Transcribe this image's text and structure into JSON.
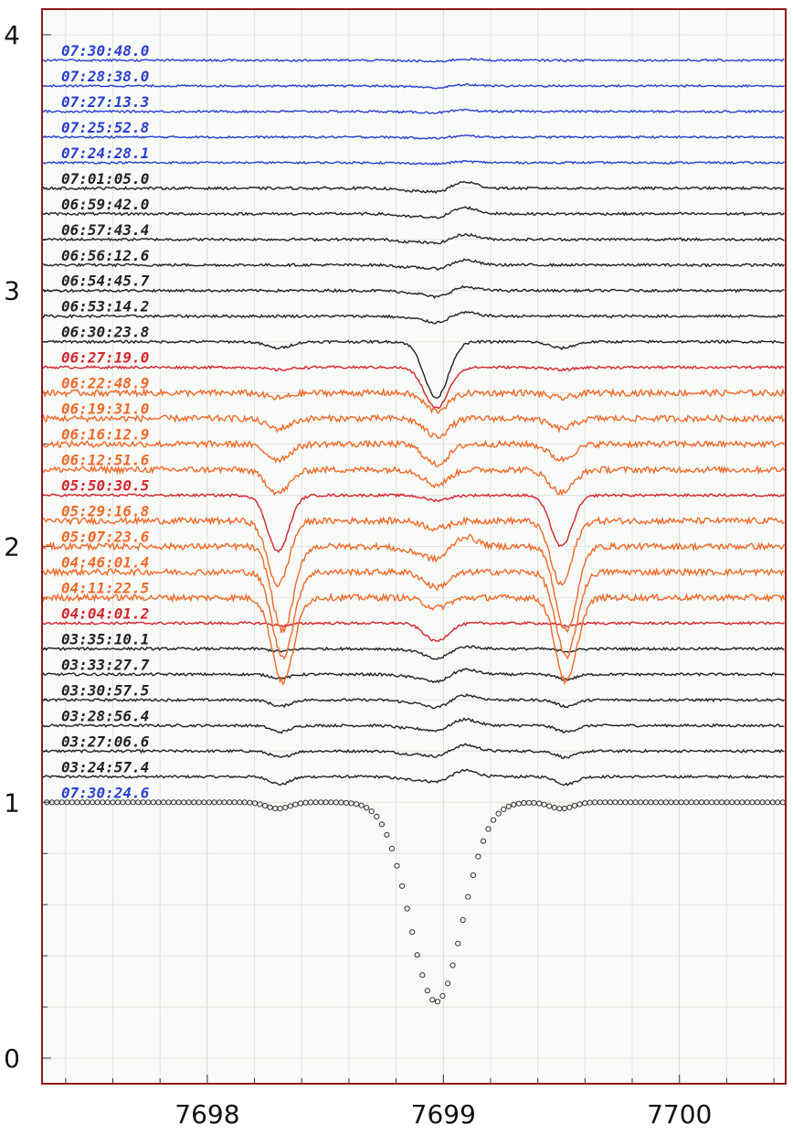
{
  "chart_data": {
    "type": "line",
    "title": "",
    "xlabel": "",
    "ylabel": "",
    "xlim": [
      7697.3,
      7700.45
    ],
    "ylim": [
      -0.1,
      4.1
    ],
    "grid": true,
    "x_ticks": [
      7698,
      7699,
      7700
    ],
    "y_ticks": [
      0,
      1,
      2,
      3,
      4
    ],
    "x_tick_labels": [
      "7698",
      "7699",
      "7700"
    ],
    "y_tick_labels": [
      "0",
      "1",
      "2",
      "3",
      "4"
    ],
    "colors": {
      "frame": "#8b1a1a",
      "plot_bg": "#f8faf7",
      "grid": "#e0e4dd",
      "blue": "#2a3fd0",
      "black": "#222222",
      "red": "#d4262e",
      "orange": "#f06a2a",
      "markers": "#333333"
    },
    "reference_series": {
      "label": "07:30:24.6",
      "label_color": "blue",
      "marker": "open-circle",
      "continuum": 1.0,
      "lines": [
        {
          "center": 7698.97,
          "depth": 0.78,
          "width": 0.11
        },
        {
          "center": 7698.3,
          "depth": 0.025,
          "width": 0.05
        },
        {
          "center": 7699.5,
          "depth": 0.025,
          "width": 0.05
        }
      ]
    },
    "series": [
      {
        "label": "03:24:57.4",
        "color": "black",
        "offset": 1.1,
        "lines": [
          {
            "center": 7698.31,
            "depth": 0.03,
            "width": 0.04
          },
          {
            "center": 7699.52,
            "depth": 0.03,
            "width": 0.04
          }
        ],
        "p_cygni": 0.025,
        "absorption": -0.02
      },
      {
        "label": "03:27:06.6",
        "color": "black",
        "offset": 1.2,
        "lines": [
          {
            "center": 7698.31,
            "depth": 0.025,
            "width": 0.04
          },
          {
            "center": 7699.52,
            "depth": 0.025,
            "width": 0.04
          }
        ],
        "p_cygni": 0.025,
        "absorption": -0.02
      },
      {
        "label": "03:28:56.4",
        "color": "black",
        "offset": 1.3,
        "lines": [
          {
            "center": 7698.31,
            "depth": 0.025,
            "width": 0.04
          },
          {
            "center": 7699.52,
            "depth": 0.025,
            "width": 0.04
          }
        ],
        "p_cygni": 0.025,
        "absorption": -0.02
      },
      {
        "label": "03:30:57.5",
        "color": "black",
        "offset": 1.4,
        "lines": [
          {
            "center": 7698.31,
            "depth": 0.025,
            "width": 0.04
          },
          {
            "center": 7699.52,
            "depth": 0.025,
            "width": 0.04
          }
        ],
        "p_cygni": 0.02,
        "absorption": -0.03
      },
      {
        "label": "03:33:27.7",
        "color": "black",
        "offset": 1.5,
        "lines": [
          {
            "center": 7698.31,
            "depth": 0.015,
            "width": 0.04
          },
          {
            "center": 7699.52,
            "depth": 0.02,
            "width": 0.04
          }
        ],
        "p_cygni": 0.02,
        "absorption": -0.03
      },
      {
        "label": "03:35:10.1",
        "color": "black",
        "offset": 1.6,
        "lines": [
          {
            "center": 7698.31,
            "depth": 0.01,
            "width": 0.04
          },
          {
            "center": 7699.52,
            "depth": 0.01,
            "width": 0.04
          }
        ],
        "p_cygni": 0.01,
        "absorption": -0.04
      },
      {
        "label": "04:04:01.2",
        "color": "red",
        "offset": 1.7,
        "lines": [
          {
            "center": 7698.32,
            "depth": 0.01,
            "width": 0.04
          },
          {
            "center": 7699.52,
            "depth": 0.01,
            "width": 0.04
          }
        ],
        "p_cygni": 0,
        "absorption": -0.07
      },
      {
        "label": "04:11:22.5",
        "color": "orange",
        "offset": 1.8,
        "lines": [
          {
            "center": 7698.32,
            "depth": 0.33,
            "width": 0.045
          },
          {
            "center": 7699.52,
            "depth": 0.33,
            "width": 0.045
          }
        ],
        "p_cygni": 0,
        "absorption": -0.04
      },
      {
        "label": "04:46:01.4",
        "color": "orange",
        "offset": 1.9,
        "lines": [
          {
            "center": 7698.32,
            "depth": 0.33,
            "width": 0.045
          },
          {
            "center": 7699.52,
            "depth": 0.33,
            "width": 0.045
          }
        ],
        "p_cygni": 0,
        "absorption": -0.06
      },
      {
        "label": "05:07:23.6",
        "color": "orange",
        "offset": 2.0,
        "lines": [
          {
            "center": 7698.32,
            "depth": 0.33,
            "width": 0.045
          },
          {
            "center": 7699.52,
            "depth": 0.33,
            "width": 0.045
          }
        ],
        "p_cygni": 0.04,
        "absorption": -0.05
      },
      {
        "label": "05:29:16.8",
        "color": "orange",
        "offset": 2.1,
        "lines": [
          {
            "center": 7698.3,
            "depth": 0.25,
            "width": 0.045
          },
          {
            "center": 7699.5,
            "depth": 0.25,
            "width": 0.045
          }
        ],
        "p_cygni": 0,
        "absorption": -0.03
      },
      {
        "label": "05:50:30.5",
        "color": "red",
        "offset": 2.2,
        "lines": [
          {
            "center": 7698.3,
            "depth": 0.22,
            "width": 0.045
          },
          {
            "center": 7699.5,
            "depth": 0.2,
            "width": 0.045
          }
        ],
        "p_cygni": 0,
        "absorption": -0.02
      },
      {
        "label": "06:12:51.6",
        "color": "orange",
        "offset": 2.3,
        "lines": [
          {
            "center": 7698.3,
            "depth": 0.09,
            "width": 0.05
          },
          {
            "center": 7699.5,
            "depth": 0.09,
            "width": 0.05
          }
        ],
        "p_cygni": 0,
        "absorption": -0.06
      },
      {
        "label": "06:16:12.9",
        "color": "orange",
        "offset": 2.4,
        "lines": [
          {
            "center": 7698.3,
            "depth": 0.06,
            "width": 0.05
          },
          {
            "center": 7699.5,
            "depth": 0.06,
            "width": 0.05
          }
        ],
        "p_cygni": 0,
        "absorption": -0.08
      },
      {
        "label": "06:19:31.0",
        "color": "orange",
        "offset": 2.5,
        "lines": [
          {
            "center": 7698.3,
            "depth": 0.04,
            "width": 0.05
          },
          {
            "center": 7699.5,
            "depth": 0.04,
            "width": 0.05
          }
        ],
        "p_cygni": 0,
        "absorption": -0.07
      },
      {
        "label": "06:22:48.9",
        "color": "orange",
        "offset": 2.6,
        "lines": [
          {
            "center": 7698.3,
            "depth": 0.02,
            "width": 0.05
          },
          {
            "center": 7699.5,
            "depth": 0.02,
            "width": 0.05
          }
        ],
        "p_cygni": 0,
        "absorption": -0.07
      },
      {
        "label": "06:27:19.0",
        "color": "red",
        "offset": 2.7,
        "lines": [
          {
            "center": 7698.3,
            "depth": 0.01,
            "width": 0.05
          },
          {
            "center": 7699.5,
            "depth": 0.01,
            "width": 0.05
          }
        ],
        "p_cygni": 0,
        "absorption": -0.16
      },
      {
        "label": "06:30:23.8",
        "color": "black",
        "offset": 2.8,
        "lines": [
          {
            "center": 7698.3,
            "depth": 0.025,
            "width": 0.05
          },
          {
            "center": 7699.5,
            "depth": 0.025,
            "width": 0.05
          }
        ],
        "p_cygni": 0,
        "absorption": -0.22
      },
      {
        "label": "06:53:14.2",
        "color": "black",
        "offset": 2.9,
        "lines": [],
        "p_cygni": 0.015,
        "absorption": -0.025
      },
      {
        "label": "06:54:45.7",
        "color": "black",
        "offset": 3.0,
        "lines": [],
        "p_cygni": 0.015,
        "absorption": -0.025
      },
      {
        "label": "06:56:12.6",
        "color": "black",
        "offset": 3.1,
        "lines": [],
        "p_cygni": 0.02,
        "absorption": -0.015
      },
      {
        "label": "06:57:43.4",
        "color": "black",
        "offset": 3.2,
        "lines": [],
        "p_cygni": 0.02,
        "absorption": -0.015
      },
      {
        "label": "06:59:42.0",
        "color": "black",
        "offset": 3.3,
        "lines": [],
        "p_cygni": 0.025,
        "absorption": -0.015
      },
      {
        "label": "07:01:05.0",
        "color": "black",
        "offset": 3.4,
        "lines": [],
        "p_cygni": 0.025,
        "absorption": -0.015
      },
      {
        "label": "07:24:28.1",
        "color": "blue",
        "offset": 3.5,
        "lines": [],
        "p_cygni": 0.005,
        "absorption": -0.005
      },
      {
        "label": "07:25:52.8",
        "color": "blue",
        "offset": 3.6,
        "lines": [],
        "p_cygni": 0.005,
        "absorption": -0.005
      },
      {
        "label": "07:27:13.3",
        "color": "blue",
        "offset": 3.7,
        "lines": [],
        "p_cygni": 0.005,
        "absorption": -0.005
      },
      {
        "label": "07:28:38.0",
        "color": "blue",
        "offset": 3.8,
        "lines": [],
        "p_cygni": 0.005,
        "absorption": -0.008
      },
      {
        "label": "07:30:48.0",
        "color": "blue",
        "offset": 3.9,
        "lines": [],
        "p_cygni": 0.005,
        "absorption": -0.005
      }
    ]
  }
}
